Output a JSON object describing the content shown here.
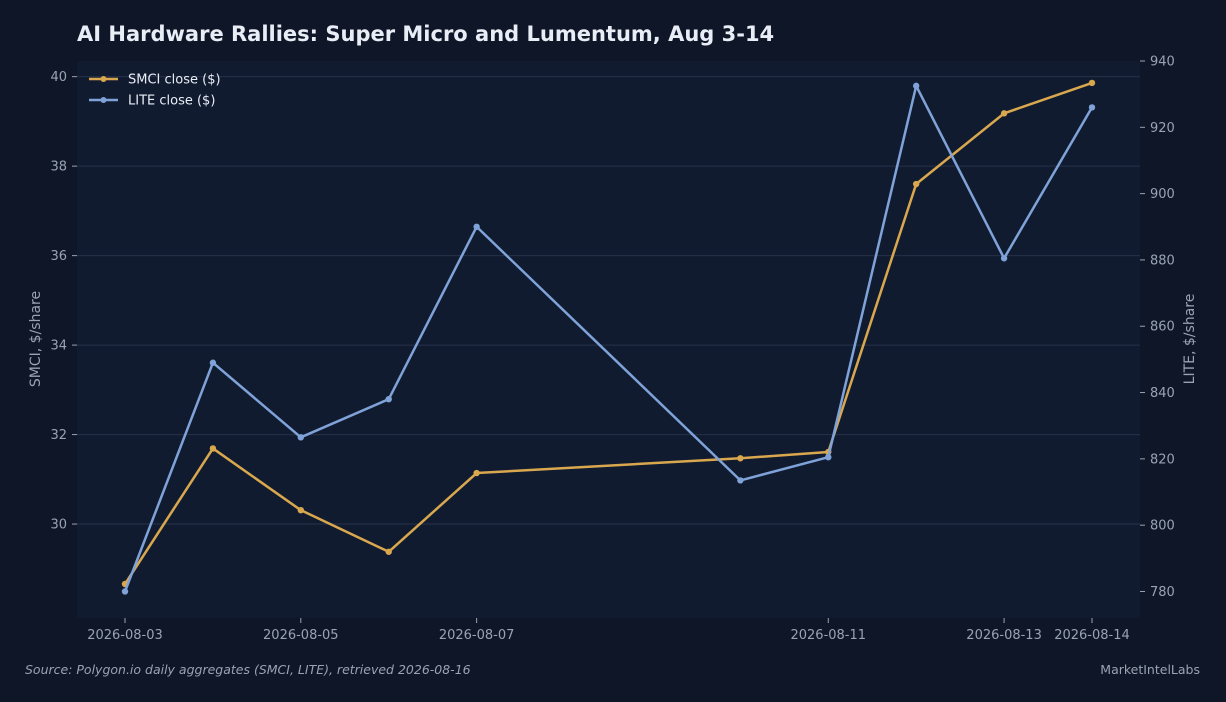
{
  "chart_data": {
    "type": "line",
    "title": "AI Hardware Rallies: Super Micro and Lumentum, Aug 3-14",
    "x": [
      "2026-08-03",
      "2026-08-04",
      "2026-08-05",
      "2026-08-06",
      "2026-08-07",
      "2026-08-10",
      "2026-08-11",
      "2026-08-12",
      "2026-08-13",
      "2026-08-14"
    ],
    "x_ticks": [
      "2026-08-03",
      "2026-08-05",
      "2026-08-07",
      "2026-08-11",
      "2026-08-13",
      "2026-08-14"
    ],
    "series": [
      {
        "name": "SMCI close ($)",
        "axis": "left",
        "color": "#d9a84e",
        "values": [
          28.66,
          31.69,
          30.31,
          29.38,
          31.14,
          31.47,
          31.61,
          37.6,
          39.18,
          39.86
        ]
      },
      {
        "name": "LITE close ($)",
        "axis": "right",
        "color": "#7fa3d8",
        "values": [
          780,
          849,
          826.5,
          838,
          890,
          813.5,
          820.5,
          932.5,
          880.5,
          926
        ]
      }
    ],
    "ylabel_left": "SMCI, $/share",
    "ylabel_right": "LITE, $/share",
    "yticks_left": [
      30,
      32,
      34,
      36,
      38,
      40
    ],
    "yticks_right": [
      780,
      800,
      820,
      840,
      860,
      880,
      900,
      920,
      940
    ],
    "ylim_left": [
      27.9,
      40.35
    ],
    "ylim_right": [
      772,
      940
    ],
    "grid": true,
    "legend": "top-left"
  },
  "footer": {
    "source": "Source: Polygon.io daily aggregates (SMCI, LITE), retrieved 2026-08-16",
    "brand": "MarketIntelLabs"
  },
  "colors": {
    "background": "#0e1628",
    "plot_background": "#111b30",
    "grid": "#26324a"
  }
}
